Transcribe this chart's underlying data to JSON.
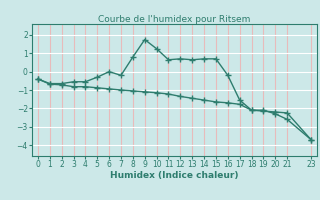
{
  "title": "Courbe de l'humidex pour Ritsem",
  "xlabel": "Humidex (Indice chaleur)",
  "bg_color": "#cce8e8",
  "grid_color": "#ffffff",
  "line_color": "#2e7d6e",
  "xlim": [
    -0.5,
    23.5
  ],
  "ylim": [
    -4.6,
    2.6
  ],
  "yticks": [
    2,
    1,
    0,
    -1,
    -2,
    -3,
    -4
  ],
  "xticks": [
    0,
    1,
    2,
    3,
    4,
    5,
    6,
    7,
    8,
    9,
    10,
    11,
    12,
    13,
    14,
    15,
    16,
    17,
    18,
    19,
    20,
    21,
    23
  ],
  "line1_x": [
    0,
    1,
    2,
    3,
    4,
    5,
    6,
    7,
    8,
    9,
    10,
    11,
    12,
    13,
    14,
    15,
    16,
    17,
    18,
    19,
    20,
    21,
    23
  ],
  "line1_y": [
    -0.4,
    -0.65,
    -0.65,
    -0.55,
    -0.55,
    -0.3,
    0.0,
    -0.2,
    0.8,
    1.75,
    1.25,
    0.65,
    0.7,
    0.65,
    0.7,
    0.7,
    -0.2,
    -1.55,
    -2.1,
    -2.1,
    -2.3,
    -2.6,
    -3.7
  ],
  "line2_x": [
    0,
    1,
    2,
    3,
    4,
    5,
    6,
    7,
    8,
    9,
    10,
    11,
    12,
    13,
    14,
    15,
    16,
    17,
    18,
    19,
    20,
    21,
    23
  ],
  "line2_y": [
    -0.4,
    -0.68,
    -0.72,
    -0.82,
    -0.82,
    -0.88,
    -0.94,
    -1.0,
    -1.05,
    -1.1,
    -1.15,
    -1.22,
    -1.35,
    -1.45,
    -1.55,
    -1.65,
    -1.7,
    -1.78,
    -2.1,
    -2.15,
    -2.2,
    -2.25,
    -3.7
  ]
}
